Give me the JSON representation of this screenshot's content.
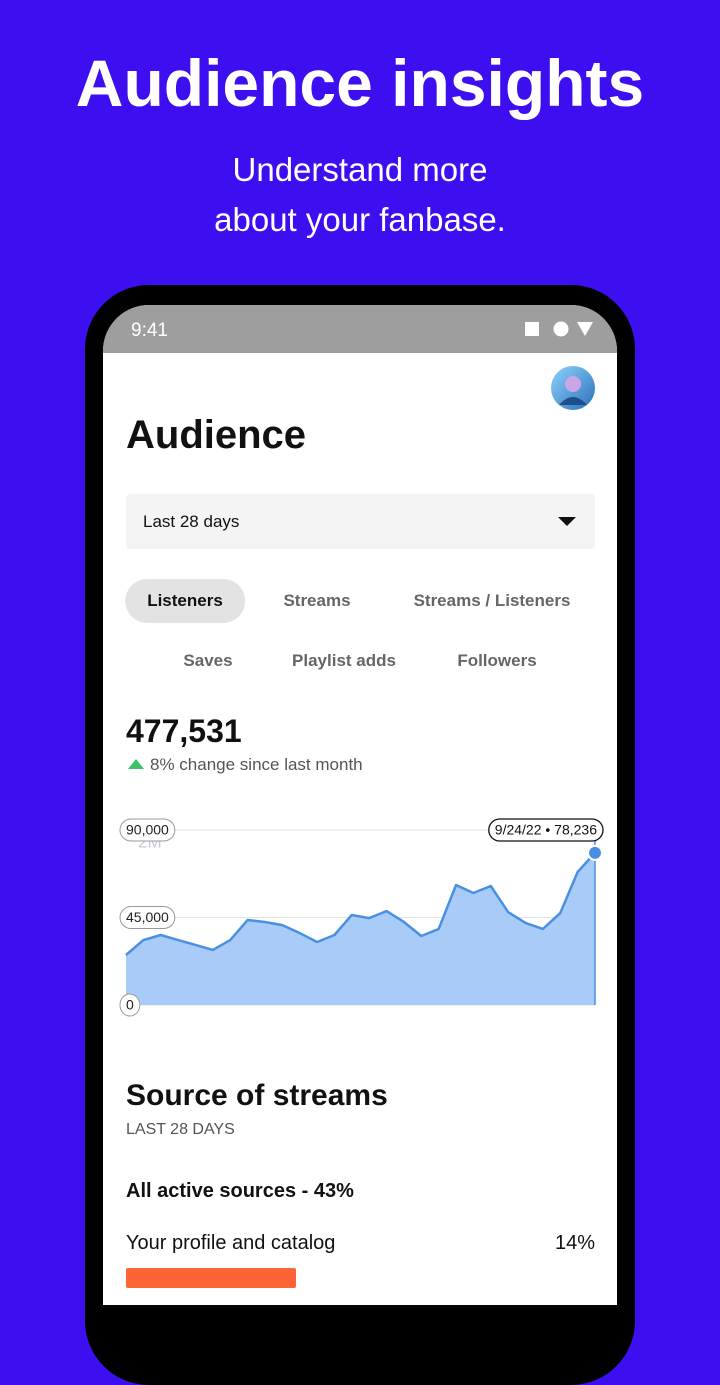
{
  "header": {
    "title": "Audience insights",
    "subtitle_lines": [
      "Understand more",
      "about your fanbase."
    ]
  },
  "status_bar": {
    "time": "9:41"
  },
  "screen": {
    "title": "Audience",
    "date_filter": "Last 28 days",
    "tabs": [
      "Listeners",
      "Streams",
      "Streams / Listeners",
      "Saves",
      "Playlist adds",
      "Followers"
    ],
    "metric": {
      "value": "477,531",
      "change": "8% change since last month"
    }
  },
  "chart_data": {
    "type": "area",
    "values": [
      25700,
      33400,
      36000,
      33400,
      30900,
      28300,
      33400,
      43700,
      42700,
      41100,
      37000,
      32400,
      36000,
      46300,
      44700,
      48300,
      42700,
      35500,
      39100,
      61700,
      57600,
      61200,
      47800,
      42200,
      39100,
      47300,
      68400,
      78236
    ],
    "color": "#4a90e2",
    "fill_color": "#a9cbf7",
    "ylim": [
      0,
      90000
    ],
    "yticks": [
      0,
      {
        "value": 45000,
        "label": "45,000"
      },
      {
        "value": 90000,
        "label": "90,000"
      }
    ],
    "grid": true,
    "tooltip": "9/24/22 • 78,236",
    "background_labels": [
      "2M",
      "1.5M"
    ]
  },
  "source": {
    "title": "Source of streams",
    "period": "LAST 28 DAYS",
    "summary": "All active sources - 43%",
    "rows": [
      {
        "label": "Your profile and catalog",
        "value": "14%"
      }
    ]
  }
}
